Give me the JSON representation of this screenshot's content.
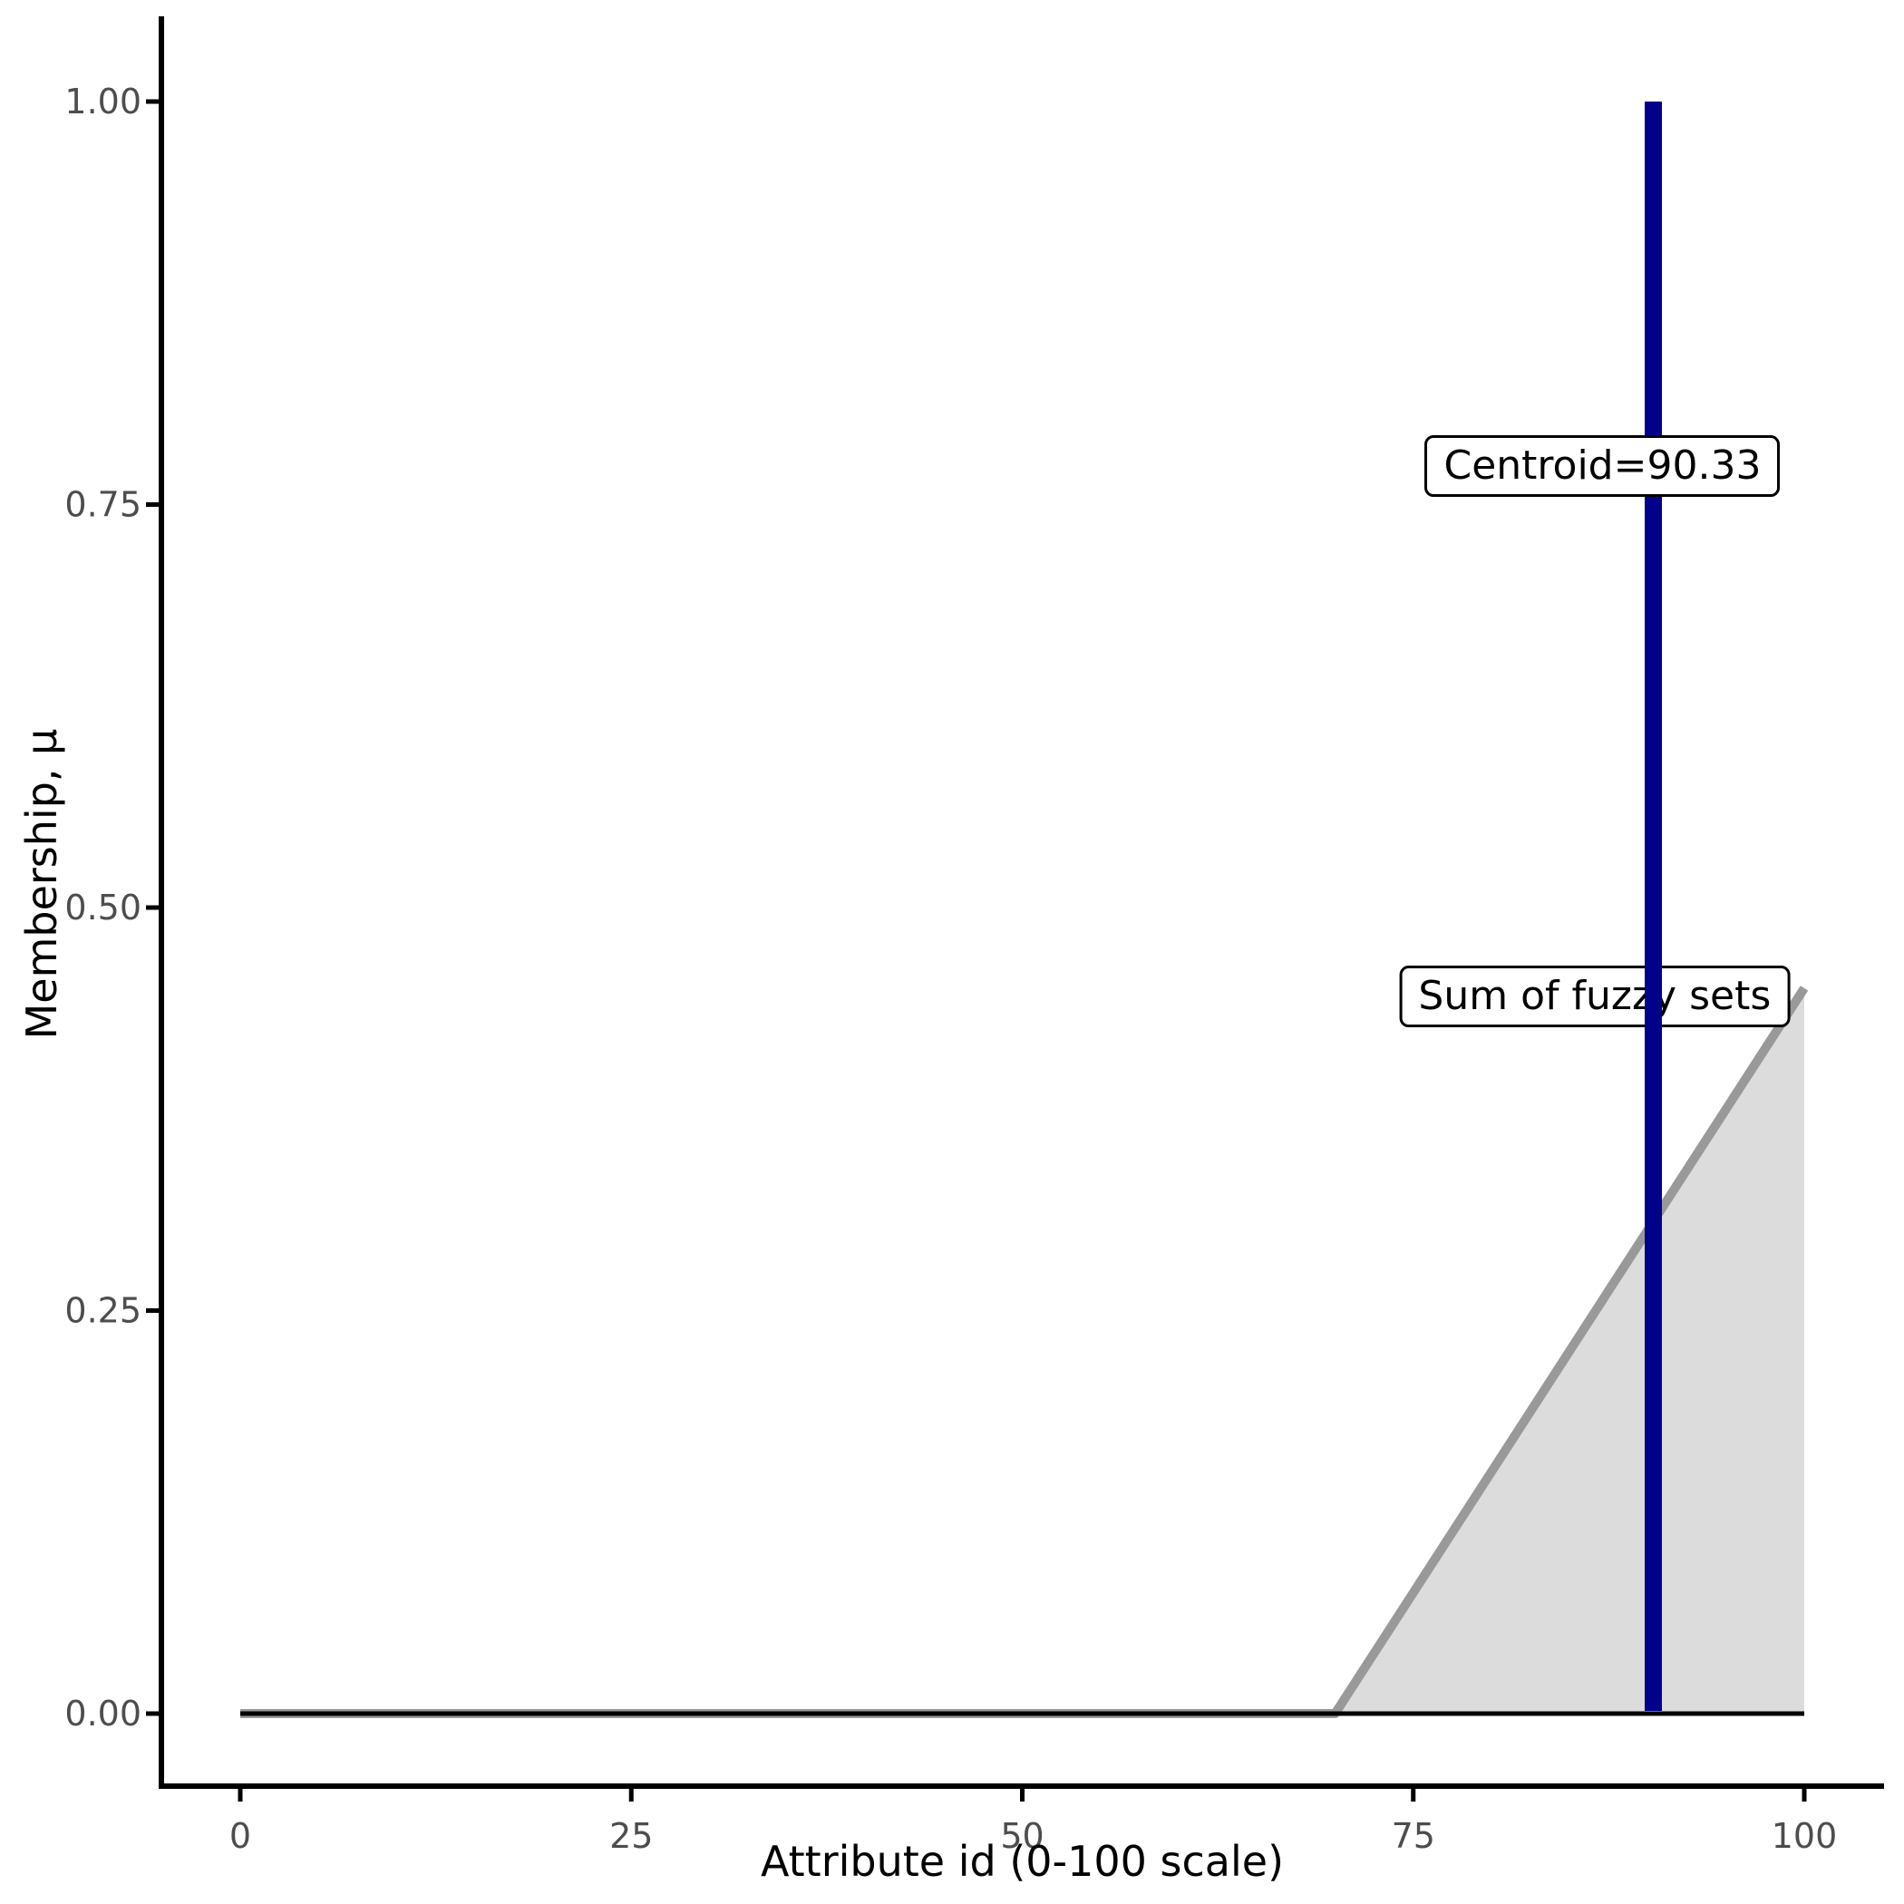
{
  "figure": {
    "background": "#ffffff"
  },
  "chart_data": {
    "type": "area",
    "title": "",
    "xlabel": "Attribute id (0-100 scale)",
    "ylabel": "Membership, μ",
    "xlim": [
      0,
      100
    ],
    "ylim": [
      0,
      1
    ],
    "x_ticks": [
      0,
      25,
      50,
      75,
      100
    ],
    "y_ticks": [
      "0.00",
      "0.25",
      "0.50",
      "0.75",
      "1.00"
    ],
    "grid": false,
    "legend": "none",
    "tick_label_color": "#4d4d4d",
    "axis_color": "#000000",
    "series": [
      {
        "name": "sum-of-fuzzy-sets",
        "type": "area",
        "x": [
          0,
          70,
          100
        ],
        "y": [
          0,
          0,
          0.45
        ],
        "line_color": "#999999",
        "fill_color": "#dcdcdc"
      },
      {
        "name": "zero-baseline",
        "type": "line",
        "x": [
          0,
          100
        ],
        "y": [
          0,
          0
        ],
        "line_color": "#000000"
      },
      {
        "name": "centroid",
        "type": "vline",
        "x": 90.33,
        "y_span": [
          0,
          1
        ],
        "line_color": "#00008b"
      }
    ],
    "annotations": [
      {
        "text": "Centroid=90.33",
        "x": 87.1,
        "y": 0.774
      },
      {
        "text": "Sum of fuzzy sets",
        "x": 86.6,
        "y": 0.445
      }
    ]
  }
}
